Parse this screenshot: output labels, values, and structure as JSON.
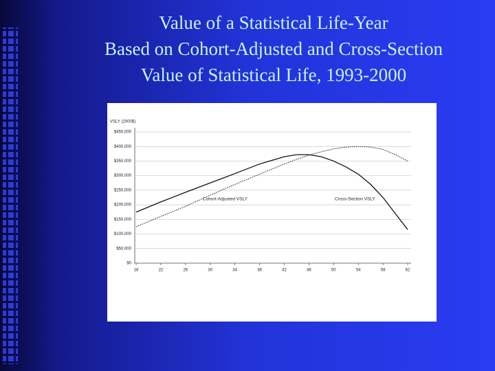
{
  "chart_data": {
    "type": "line",
    "title": [
      "Value of a Statistical Life-Year",
      "Based on Cohort-Adjusted and Cross-Section",
      "Value of Statistical Life, 1993-2000"
    ],
    "y_axis_label": "VSLY (2000$)",
    "x": [
      18,
      22,
      26,
      30,
      34,
      38,
      42,
      44,
      46,
      48,
      50,
      52,
      54,
      56,
      58,
      60,
      62
    ],
    "series": [
      {
        "name": "Cohort-Adjusted VSLY",
        "color": "#111111",
        "line_style": "solid",
        "values": [
          175000,
          210000,
          243000,
          275000,
          307000,
          340000,
          365000,
          372000,
          372000,
          365000,
          350000,
          330000,
          305000,
          270000,
          225000,
          170000,
          115000
        ]
      },
      {
        "name": "Cross-Section VSLY",
        "color": "#111111",
        "line_style": "dotted",
        "values": [
          125000,
          160000,
          195000,
          233000,
          270000,
          305000,
          340000,
          356000,
          370000,
          382000,
          392000,
          398000,
          400000,
          398000,
          390000,
          372000,
          350000
        ]
      }
    ],
    "xlim": [
      18,
      62
    ],
    "xticks": [
      18,
      22,
      26,
      30,
      34,
      38,
      42,
      46,
      50,
      54,
      58,
      62
    ],
    "ylim": [
      0,
      450000
    ],
    "yticks": [
      {
        "value": 0,
        "label": "$0"
      },
      {
        "value": 50000,
        "label": "$50,000"
      },
      {
        "value": 100000,
        "label": "$100,000"
      },
      {
        "value": 150000,
        "label": "$150,000"
      },
      {
        "value": 200000,
        "label": "$200,000"
      },
      {
        "value": 250000,
        "label": "$250,000"
      },
      {
        "value": 300000,
        "label": "$300,000"
      },
      {
        "value": 350000,
        "label": "$350,000"
      },
      {
        "value": 400000,
        "label": "$400,000"
      },
      {
        "value": 450000,
        "label": "$450,000"
      }
    ],
    "grid": true
  }
}
